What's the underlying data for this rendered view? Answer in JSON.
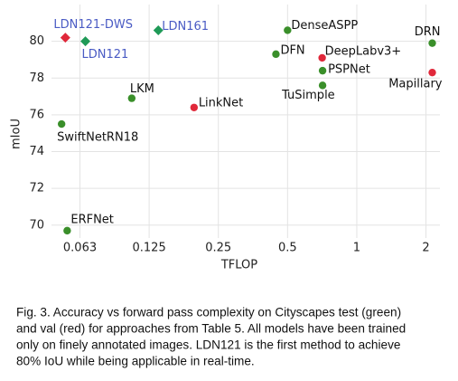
{
  "chart_data": {
    "type": "scatter",
    "x_label": "TFLOP",
    "y_label": "mIoU",
    "log_x": true,
    "grid": true,
    "xlim": [
      0.047,
      2.3
    ],
    "ylim": [
      69.3,
      82
    ],
    "xticks": [
      {
        "value": 0.0625,
        "label": "0.063"
      },
      0.125,
      0.25,
      0.5,
      1,
      2
    ],
    "yticks": [
      70,
      72,
      74,
      76,
      78,
      80
    ],
    "points": [
      {
        "label": "LDN121-DWS",
        "x": 0.054,
        "y": 80.2,
        "color": "#e0283a",
        "marker": "diamond",
        "label_color": "#4a5bc4"
      },
      {
        "label": "LDN121",
        "x": 0.066,
        "y": 80.0,
        "color": "#1f9a57",
        "marker": "diamond",
        "label_color": "#4a5bc4"
      },
      {
        "label": "LDN161",
        "x": 0.137,
        "y": 80.6,
        "color": "#1f9a57",
        "marker": "diamond",
        "label_color": "#4a5bc4"
      },
      {
        "label": "DenseASPP",
        "x": 0.5,
        "y": 80.6,
        "color": "#3a8f2a",
        "marker": "circle",
        "label_color": "#111111"
      },
      {
        "label": "DFN",
        "x": 0.445,
        "y": 79.3,
        "color": "#3a8f2a",
        "marker": "circle",
        "label_color": "#111111"
      },
      {
        "label": "DRN",
        "x": 2.13,
        "y": 79.9,
        "color": "#3a8f2a",
        "marker": "circle",
        "label_color": "#111111"
      },
      {
        "label": "DeepLabv3+",
        "x": 0.707,
        "y": 79.1,
        "color": "#e0283a",
        "marker": "circle",
        "label_color": "#111111"
      },
      {
        "label": "PSPNet",
        "x": 0.71,
        "y": 78.4,
        "color": "#3a8f2a",
        "marker": "circle",
        "label_color": "#111111"
      },
      {
        "label": "Mapillary",
        "x": 2.13,
        "y": 78.3,
        "color": "#e0283a",
        "marker": "circle",
        "label_color": "#111111"
      },
      {
        "label": "TuSimple",
        "x": 0.71,
        "y": 77.6,
        "color": "#3a8f2a",
        "marker": "circle",
        "label_color": "#111111"
      },
      {
        "label": "LKM",
        "x": 0.105,
        "y": 76.9,
        "color": "#3a8f2a",
        "marker": "circle",
        "label_color": "#111111"
      },
      {
        "label": "LinkNet",
        "x": 0.196,
        "y": 76.4,
        "color": "#e0283a",
        "marker": "circle",
        "label_color": "#111111"
      },
      {
        "label": "SwiftNetRN18",
        "x": 0.052,
        "y": 75.5,
        "color": "#3a8f2a",
        "marker": "circle",
        "label_color": "#111111"
      },
      {
        "label": "ERFNet",
        "x": 0.055,
        "y": 69.7,
        "color": "#3a8f2a",
        "marker": "circle",
        "label_color": "#111111"
      }
    ]
  },
  "caption_lines": [
    "Fig. 3.  Accuracy vs forward pass complexity on Cityscapes test (green)",
    "and val (red) for approaches from Table 5. All models have been trained",
    "only on finely annotated images. LDN121 is the first method to achieve",
    "80% IoU while being applicable in real-time."
  ]
}
